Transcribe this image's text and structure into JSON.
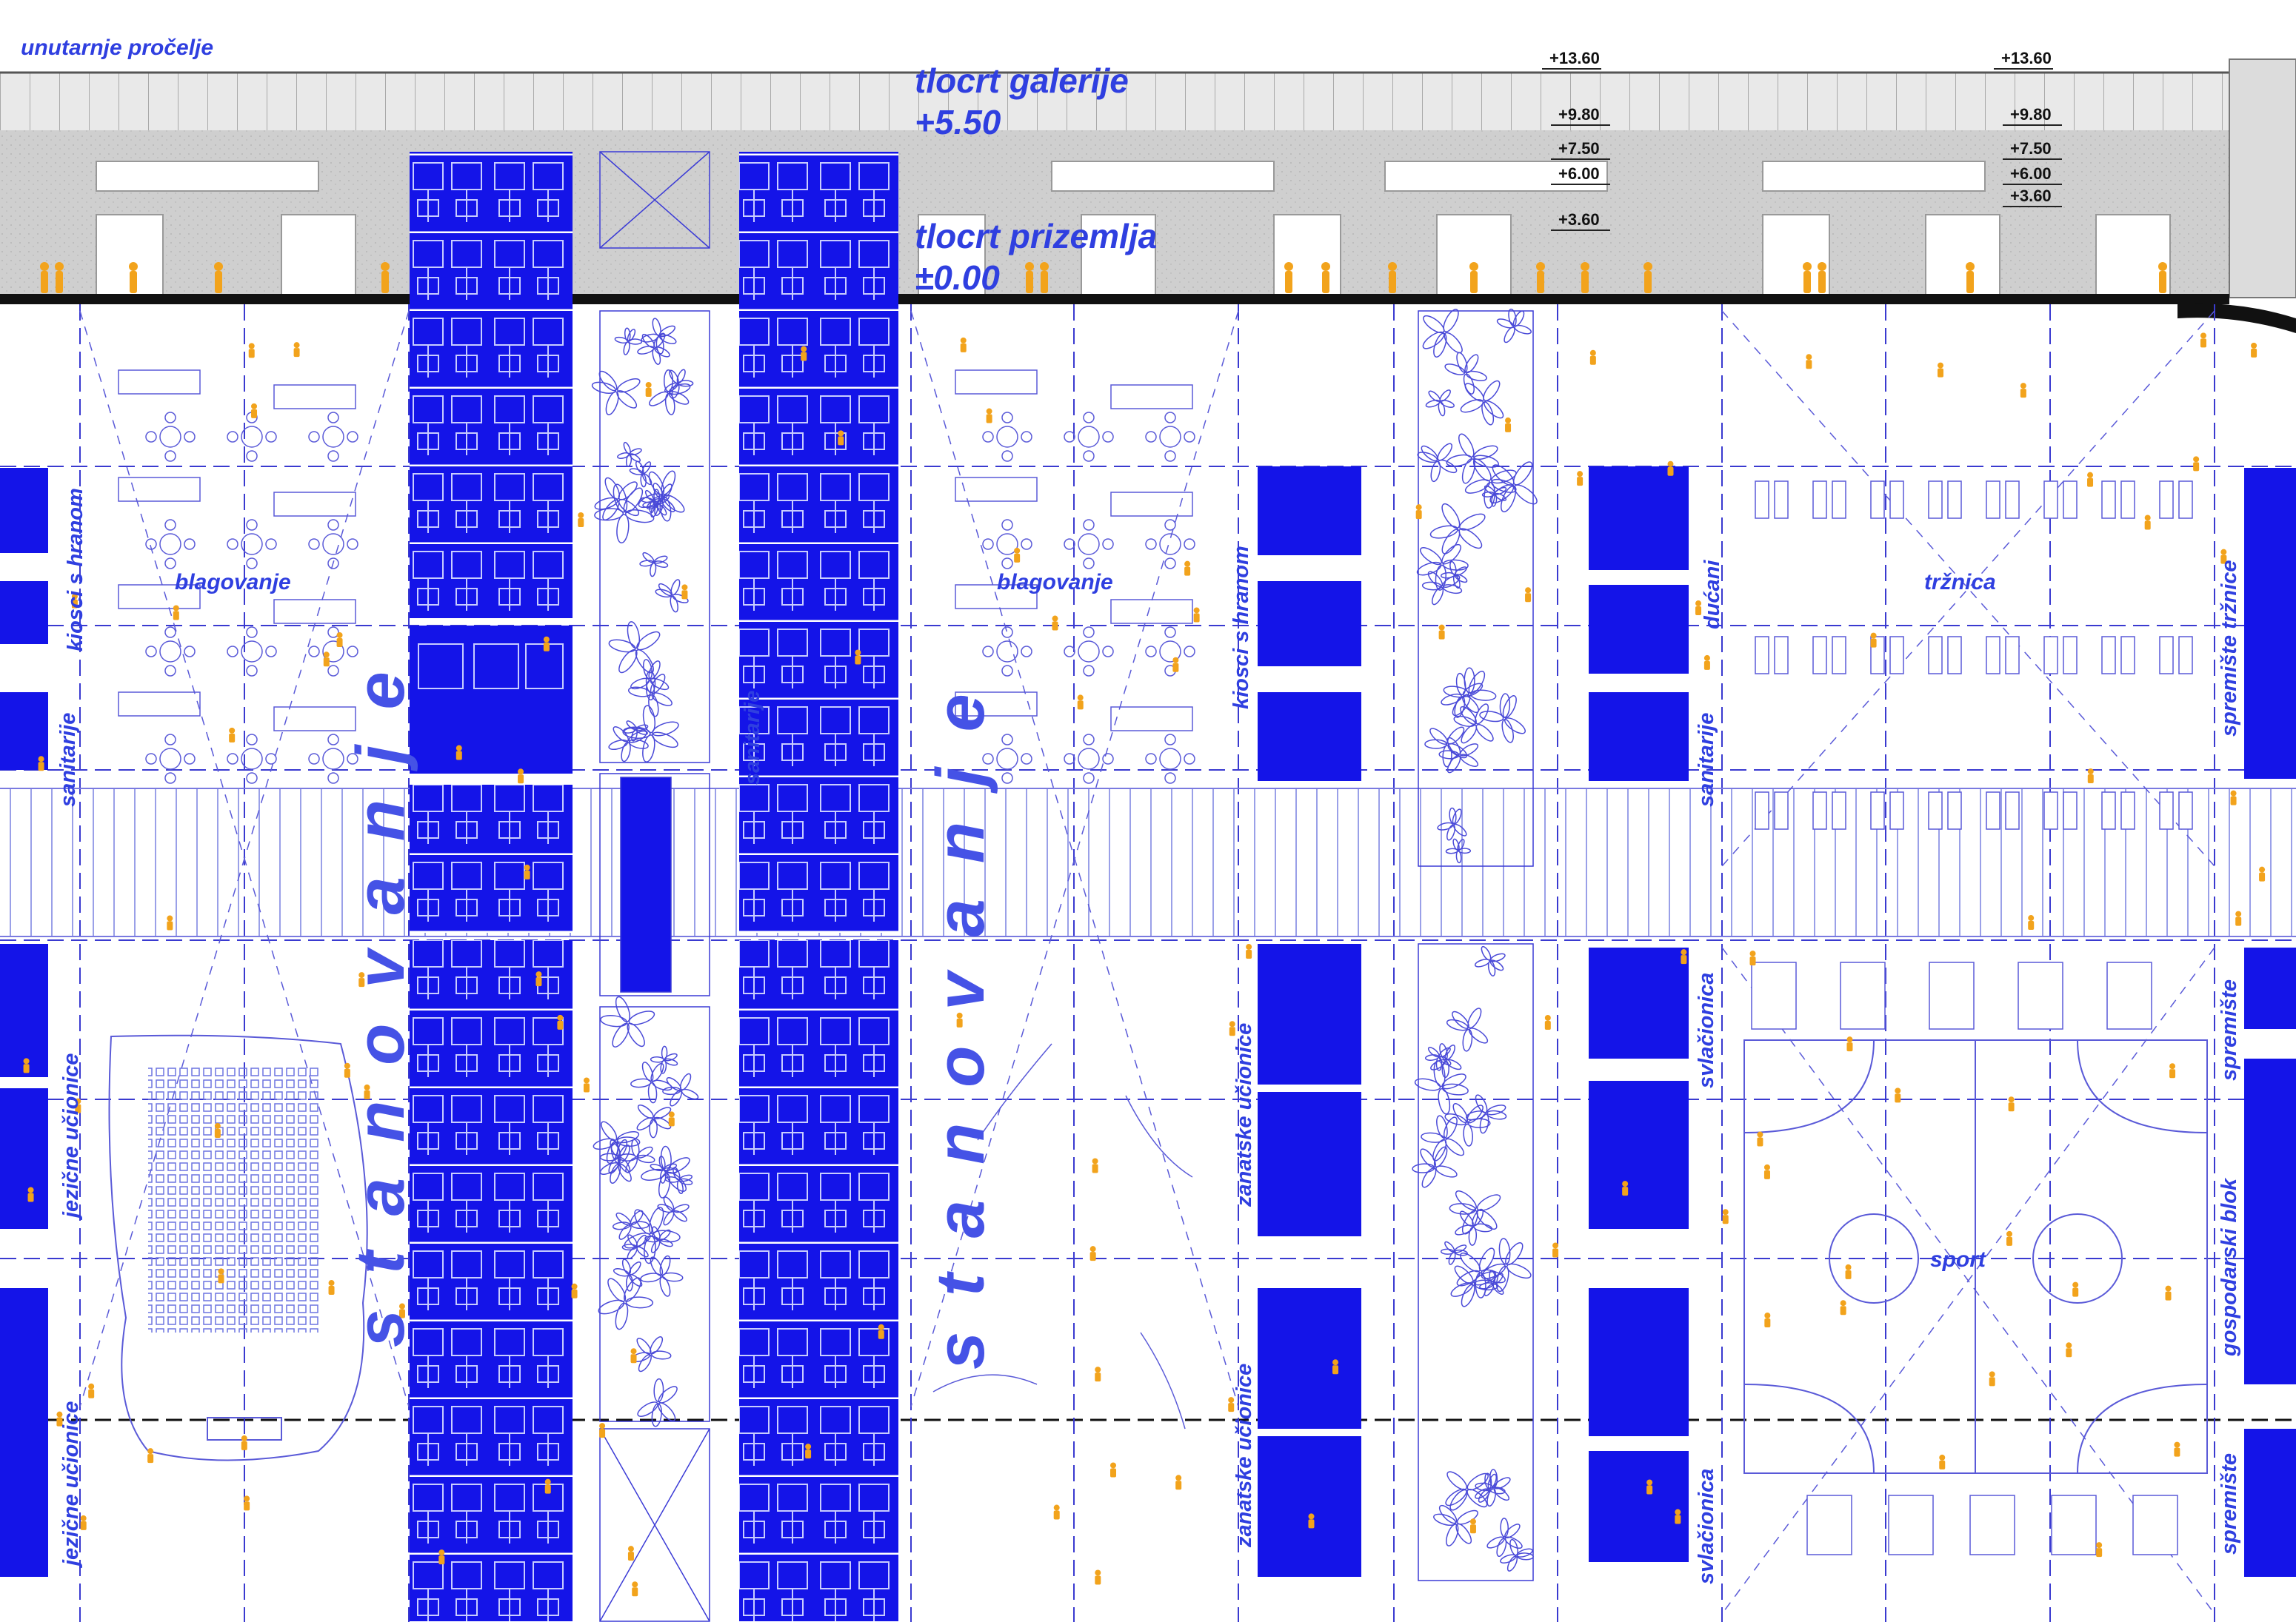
{
  "labels": {
    "interior_facade": "unutarnje pročelje",
    "gallery_plan_title": "tlocrt galerije",
    "gallery_plan_level": "+5.50",
    "ground_plan_title": "tlocrt prizemlja",
    "ground_plan_level": "±0.00",
    "housing": "stanovanje",
    "dining": "blagovanje",
    "food_kiosks": "kiosci s hranom",
    "sanitary": "sanitarije",
    "shops": "dućani",
    "market": "tržnica",
    "market_storage": "spremište tržnice",
    "language_classrooms": "jezične učionice",
    "craft_classrooms": "zanatske učionice",
    "changing_room": "svlačionica",
    "sport": "sport",
    "storage": "spremište",
    "utility_block": "gospodarski blok"
  },
  "elevations_left": [
    "+13.60",
    "+9.80",
    "+7.50",
    "+6.00",
    "+3.60"
  ],
  "elevations_right": [
    "+13.60",
    "+9.80",
    "+7.50",
    "+6.00",
    "+3.60"
  ],
  "colors": {
    "block_blue": "#1212e6",
    "line_blue": "#3b3bd6",
    "label_blue": "#2f3fe0",
    "people_orange": "#f2a31c",
    "facade_grey": "#c9c9c9",
    "background": "#ffffff"
  }
}
